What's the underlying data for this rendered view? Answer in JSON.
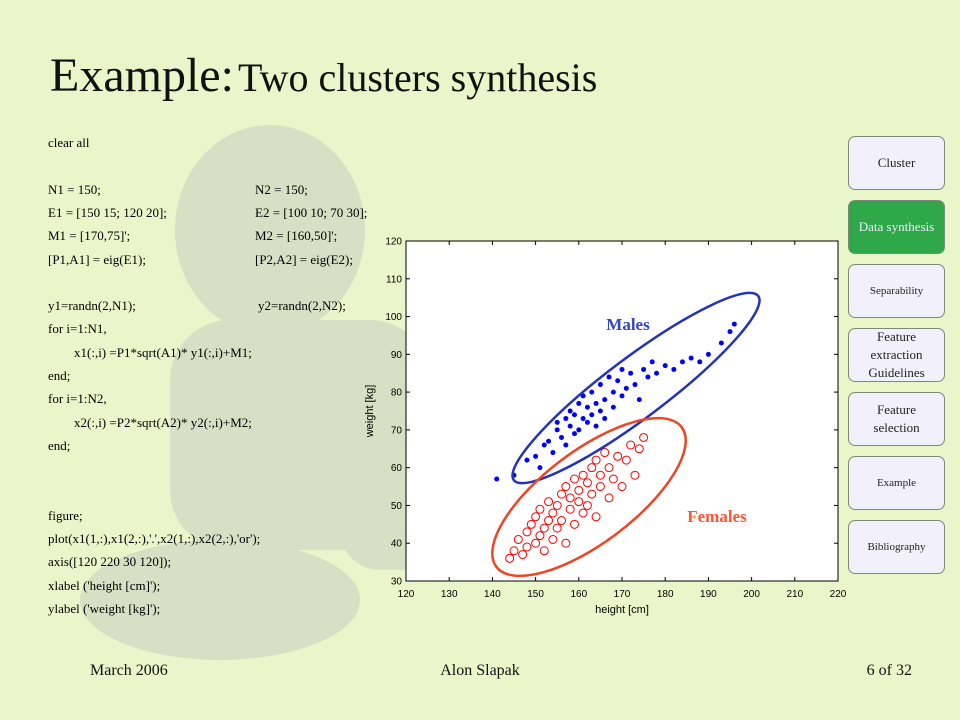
{
  "header": {
    "title_lead": "Example:",
    "title_rest": "Two clusters  synthesis"
  },
  "code": {
    "left": [
      "clear all",
      "N1 = 150;",
      "E1 = [150 15; 120 20];",
      "M1 = [170,75]';",
      "[P1,A1] = eig(E1);",
      "y1=randn(2,N1);",
      "for i=1:N1,",
      "x1(:,i) =P1*sqrt(A1)* y1(:,i)+M1;",
      "end;",
      "for i=1:N2,",
      "x2(:,i) =P2*sqrt(A2)* y2(:,i)+M2;",
      "end;",
      "figure;",
      "plot(x1(1,:),x1(2,:),'.',x2(1,:),x2(2,:),'or');",
      "axis([120 220 30 120]);",
      "xlabel ('height [cm]');",
      "ylabel ('weight [kg]');"
    ],
    "right": [
      "N2 = 150;",
      "E2 = [100 10; 70 30];",
      "M2 = [160,50]';",
      "[P2,A2] = eig(E2);",
      "y2=randn(2,N2);"
    ]
  },
  "nav": [
    "Cluster",
    "Data synthesis",
    "Separability",
    "Feature extraction Guidelines",
    "Feature selection",
    "Example",
    "Bibliography"
  ],
  "footer": {
    "date": "March 2006",
    "author": "Alon Slapak",
    "page": "6 of 32"
  },
  "chart_data": {
    "type": "scatter",
    "x_label": "height [cm]",
    "y_label": "weight [kg]",
    "xlim": [
      120,
      220
    ],
    "ylim": [
      30,
      120
    ],
    "xticks": [
      120,
      130,
      140,
      150,
      160,
      170,
      180,
      190,
      200,
      210,
      220
    ],
    "yticks": [
      30,
      40,
      50,
      60,
      70,
      80,
      90,
      100,
      110,
      120
    ],
    "annotations": [
      {
        "text": "Males",
        "color": "#3344cc"
      },
      {
        "text": "Females",
        "color": "#ff5533"
      }
    ],
    "series": [
      {
        "color": "#0000ff",
        "marker": "dot",
        "x": [
          141,
          145,
          148,
          150,
          151,
          152,
          153,
          154,
          155,
          155,
          156,
          157,
          157,
          158,
          158,
          159,
          159,
          160,
          160,
          161,
          161,
          162,
          162,
          163,
          163,
          164,
          164,
          165,
          165,
          166,
          166,
          167,
          168,
          168,
          169,
          170,
          170,
          171,
          172,
          173,
          174,
          175,
          176,
          177,
          178,
          180,
          182,
          184,
          186,
          188,
          190,
          193,
          195,
          196
        ],
        "values": [
          57,
          58,
          62,
          63,
          60,
          66,
          67,
          64,
          70,
          72,
          68,
          73,
          66,
          71,
          75,
          69,
          74,
          77,
          70,
          73,
          79,
          72,
          76,
          74,
          80,
          77,
          71,
          82,
          75,
          78,
          73,
          84,
          80,
          76,
          83,
          79,
          86,
          81,
          85,
          82,
          78,
          86,
          84,
          88,
          85,
          87,
          86,
          88,
          89,
          88,
          90,
          93,
          96,
          98
        ]
      },
      {
        "color": "#ff0000",
        "marker": "circle",
        "x": [
          144,
          145,
          146,
          147,
          148,
          148,
          149,
          150,
          150,
          151,
          151,
          152,
          152,
          153,
          153,
          154,
          154,
          155,
          155,
          156,
          156,
          157,
          157,
          158,
          158,
          159,
          159,
          160,
          160,
          161,
          161,
          162,
          162,
          163,
          163,
          164,
          164,
          165,
          165,
          166,
          167,
          167,
          168,
          169,
          170,
          171,
          172,
          173,
          174,
          175
        ],
        "values": [
          36,
          38,
          41,
          37,
          43,
          39,
          45,
          40,
          47,
          42,
          49,
          44,
          38,
          46,
          51,
          41,
          48,
          50,
          44,
          53,
          46,
          40,
          55,
          49,
          52,
          45,
          57,
          51,
          54,
          48,
          58,
          50,
          56,
          53,
          60,
          47,
          62,
          55,
          58,
          64,
          52,
          60,
          57,
          63,
          55,
          62,
          66,
          58,
          65,
          68
        ]
      }
    ]
  }
}
